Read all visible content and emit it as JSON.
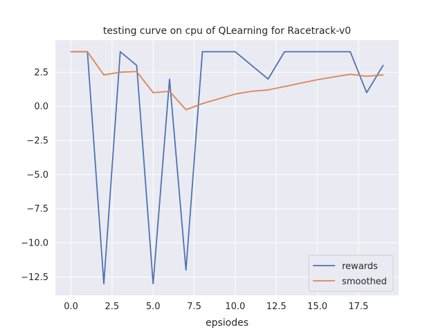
{
  "chart_data": {
    "type": "line",
    "title": "testing curve on cpu of QLearning for Racetrack-v0",
    "xlabel": "epsiodes",
    "ylabel": "",
    "xlim": [
      -0.95,
      19.95
    ],
    "ylim": [
      -13.85,
      4.85
    ],
    "xticks": [
      0,
      2.5,
      5,
      7.5,
      10,
      12.5,
      15,
      17.5
    ],
    "xtick_labels": [
      "0.0",
      "2.5",
      "5.0",
      "7.5",
      "10.0",
      "12.5",
      "15.0",
      "17.5"
    ],
    "yticks": [
      2.5,
      0,
      -2.5,
      -5,
      -7.5,
      -10,
      -12.5
    ],
    "ytick_labels": [
      "2.5",
      "0.0",
      "−2.5",
      "−5.0",
      "−7.5",
      "−10.0",
      "−12.5"
    ],
    "grid": true,
    "legend_position": "lower-right",
    "x": [
      0,
      1,
      2,
      3,
      4,
      5,
      6,
      7,
      8,
      9,
      10,
      11,
      12,
      13,
      14,
      15,
      16,
      17,
      18,
      19
    ],
    "series": [
      {
        "name": "rewards",
        "color": "#4c72b0",
        "values": [
          4,
          4,
          -13,
          4,
          3,
          -13,
          2,
          -12,
          4,
          4,
          4,
          3,
          2,
          4,
          4,
          4,
          4,
          4,
          1,
          3
        ]
      },
      {
        "name": "smoothed",
        "color": "#dd8452",
        "values": [
          4,
          4,
          2.3,
          2.5,
          2.55,
          1.0,
          1.1,
          -0.25,
          0.2,
          0.55,
          0.9,
          1.1,
          1.2,
          1.45,
          1.7,
          1.95,
          2.15,
          2.35,
          2.2,
          2.3
        ]
      }
    ]
  }
}
